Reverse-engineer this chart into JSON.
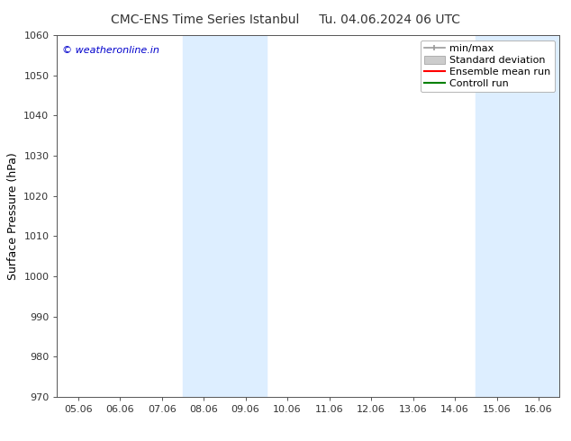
{
  "title_left": "CMC-ENS Time Series Istanbul",
  "title_right": "Tu. 04.06.2024 06 UTC",
  "ylabel": "Surface Pressure (hPa)",
  "xlim_dates": [
    "05.06",
    "06.06",
    "07.06",
    "08.06",
    "09.06",
    "10.06",
    "11.06",
    "12.06",
    "13.06",
    "14.06",
    "15.06",
    "16.06"
  ],
  "xtick_positions": [
    0,
    1,
    2,
    3,
    4,
    5,
    6,
    7,
    8,
    9,
    10,
    11
  ],
  "ylim": [
    970,
    1060
  ],
  "yticks": [
    970,
    980,
    990,
    1000,
    1010,
    1020,
    1030,
    1040,
    1050,
    1060
  ],
  "shaded_bands": [
    {
      "x_start": 3,
      "x_end": 4,
      "color": "#ddeeff"
    },
    {
      "x_start": 10,
      "x_end": 11,
      "color": "#ddeeff"
    }
  ],
  "legend_entries": [
    {
      "label": "min/max",
      "color": "#999999",
      "type": "errorbar"
    },
    {
      "label": "Standard deviation",
      "color": "#cccccc",
      "type": "bar"
    },
    {
      "label": "Ensemble mean run",
      "color": "#ff0000",
      "type": "line"
    },
    {
      "label": "Controll run",
      "color": "#008000",
      "type": "line"
    }
  ],
  "watermark": "© weatheronline.in",
  "watermark_color": "#0000cc",
  "bg_color": "#ffffff",
  "plot_bg_color": "#ffffff",
  "spine_color": "#555555",
  "tick_color": "#333333",
  "title_fontsize": 10,
  "axis_label_fontsize": 9,
  "tick_fontsize": 8,
  "legend_fontsize": 8,
  "watermark_fontsize": 8
}
